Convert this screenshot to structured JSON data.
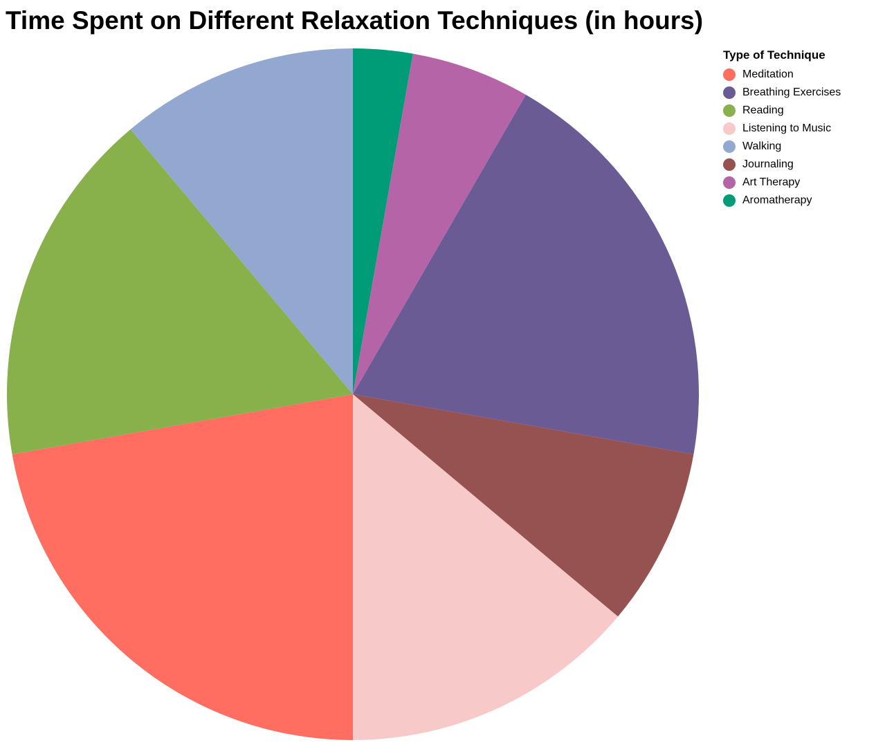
{
  "chart_data": {
    "type": "pie",
    "title": "Time Spent on Different Relaxation Techniques (in hours)",
    "legend_title": "Type of Technique",
    "legend_position": "top-right",
    "slices": [
      {
        "label": "Meditation",
        "value": 8,
        "color": "#ff6e61"
      },
      {
        "label": "Breathing Exercises",
        "value": 7,
        "color": "#6b5b95"
      },
      {
        "label": "Reading",
        "value": 6,
        "color": "#88b04b"
      },
      {
        "label": "Listening to Music",
        "value": 5,
        "color": "#f7cac9"
      },
      {
        "label": "Walking",
        "value": 4,
        "color": "#92a8d1"
      },
      {
        "label": "Journaling",
        "value": 3,
        "color": "#955251"
      },
      {
        "label": "Art Therapy",
        "value": 2,
        "color": "#b565a7"
      },
      {
        "label": "Aromatherapy",
        "value": 1,
        "color": "#009b77"
      }
    ],
    "draw_order": [
      "Aromatherapy",
      "Art Therapy",
      "Breathing Exercises",
      "Journaling",
      "Listening to Music",
      "Meditation",
      "Reading",
      "Walking"
    ]
  }
}
